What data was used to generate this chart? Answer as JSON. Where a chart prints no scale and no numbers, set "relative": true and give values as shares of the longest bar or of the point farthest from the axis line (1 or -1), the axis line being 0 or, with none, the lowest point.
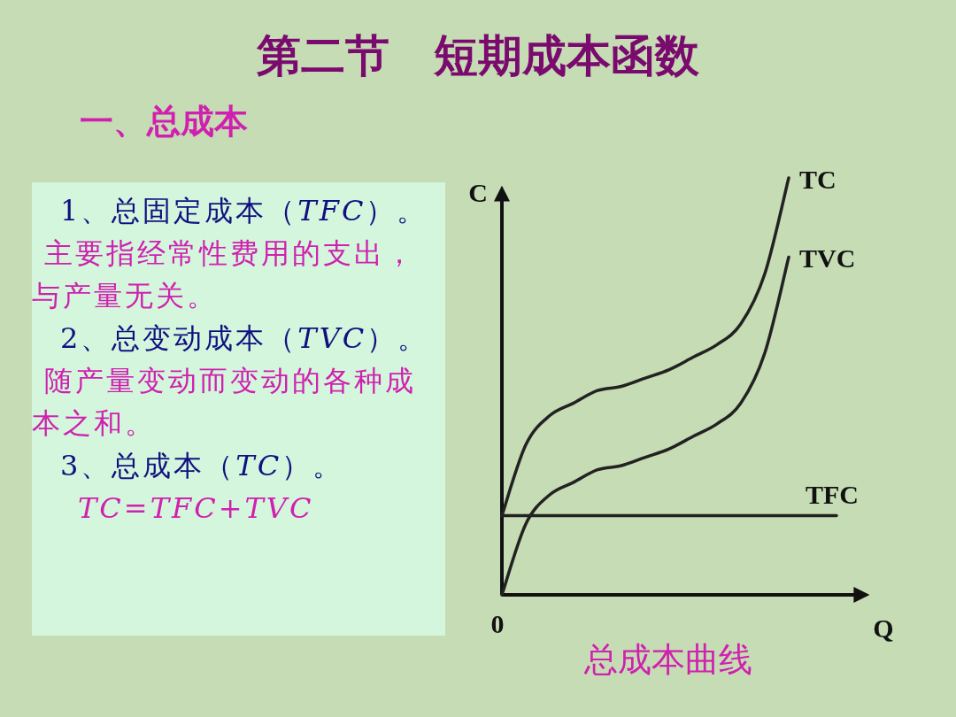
{
  "chart_data": {
    "type": "line",
    "relative": true,
    "title": "第二节　短期成本函数",
    "subtitle": "一、总成本",
    "xlabel": "Q",
    "ylabel": "C",
    "categories": [
      null,
      null,
      null,
      null,
      null,
      null,
      null,
      null,
      null,
      null,
      null,
      null,
      null,
      null,
      null
    ],
    "series": [
      {
        "name": "TC",
        "color": "#222222",
        "values": [
          0.19,
          0.36,
          0.43,
          0.46,
          0.49,
          0.5,
          0.52,
          0.54,
          0.57,
          0.6,
          0.65,
          0.77,
          1,
          null,
          null
        ]
      },
      {
        "name": "TVC",
        "color": "#222222",
        "values": [
          0,
          0.17,
          0.24,
          0.27,
          0.3,
          0.31,
          0.33,
          0.35,
          0.38,
          0.41,
          0.46,
          0.58,
          0.81,
          null,
          null
        ]
      },
      {
        "name": "TFC",
        "color": "#222222",
        "values": [
          0.19,
          0.19,
          0.19,
          0.19,
          0.19,
          0.19,
          0.19,
          0.19,
          0.19,
          0.19,
          0.19,
          0.19,
          0.19,
          0.19,
          0.19
        ]
      }
    ],
    "annotations": [
      "0",
      "总成本曲线",
      "1、总固定成本（*TFC*）。",
      "主要指经常性费用的支出，与产量无关。",
      "2、总变动成本（*TVC*）。",
      "随产量变动而变动的各种成本之和。",
      "3、总成本（*TC*）。",
      "*TC=TFC+TVC*"
    ]
  }
}
